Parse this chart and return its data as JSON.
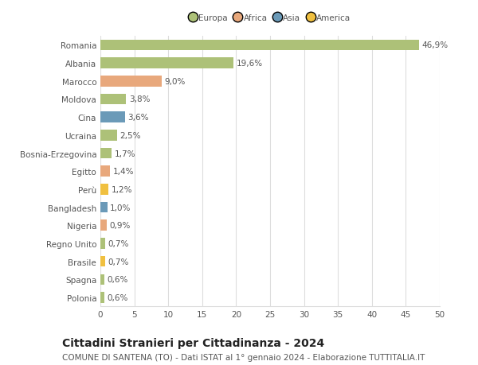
{
  "categories": [
    "Romania",
    "Albania",
    "Marocco",
    "Moldova",
    "Cina",
    "Ucraina",
    "Bosnia-Erzegovina",
    "Egitto",
    "Perù",
    "Bangladesh",
    "Nigeria",
    "Regno Unito",
    "Brasile",
    "Spagna",
    "Polonia"
  ],
  "values": [
    46.9,
    19.6,
    9.0,
    3.8,
    3.6,
    2.5,
    1.7,
    1.4,
    1.2,
    1.0,
    0.9,
    0.7,
    0.7,
    0.6,
    0.6
  ],
  "labels": [
    "46,9%",
    "19,6%",
    "9,0%",
    "3,8%",
    "3,6%",
    "2,5%",
    "1,7%",
    "1,4%",
    "1,2%",
    "1,0%",
    "0,9%",
    "0,7%",
    "0,7%",
    "0,6%",
    "0,6%"
  ],
  "colors": [
    "#adc178",
    "#adc178",
    "#e8a87c",
    "#adc178",
    "#6b9ab8",
    "#adc178",
    "#adc178",
    "#e8a87c",
    "#f0c040",
    "#6b9ab8",
    "#e8a87c",
    "#adc178",
    "#f0c040",
    "#adc178",
    "#adc178"
  ],
  "legend": [
    {
      "label": "Europa",
      "color": "#adc178"
    },
    {
      "label": "Africa",
      "color": "#e8a87c"
    },
    {
      "label": "Asia",
      "color": "#6b9ab8"
    },
    {
      "label": "America",
      "color": "#f0c040"
    }
  ],
  "xlim": [
    0,
    50
  ],
  "xticks": [
    0,
    5,
    10,
    15,
    20,
    25,
    30,
    35,
    40,
    45,
    50
  ],
  "title": "Cittadini Stranieri per Cittadinanza - 2024",
  "subtitle": "COMUNE DI SANTENA (TO) - Dati ISTAT al 1° gennaio 2024 - Elaborazione TUTTITALIA.IT",
  "bg_color": "#ffffff",
  "grid_color": "#dddddd",
  "bar_height": 0.6,
  "title_fontsize": 10,
  "subtitle_fontsize": 7.5,
  "label_fontsize": 7.5,
  "tick_fontsize": 7.5
}
